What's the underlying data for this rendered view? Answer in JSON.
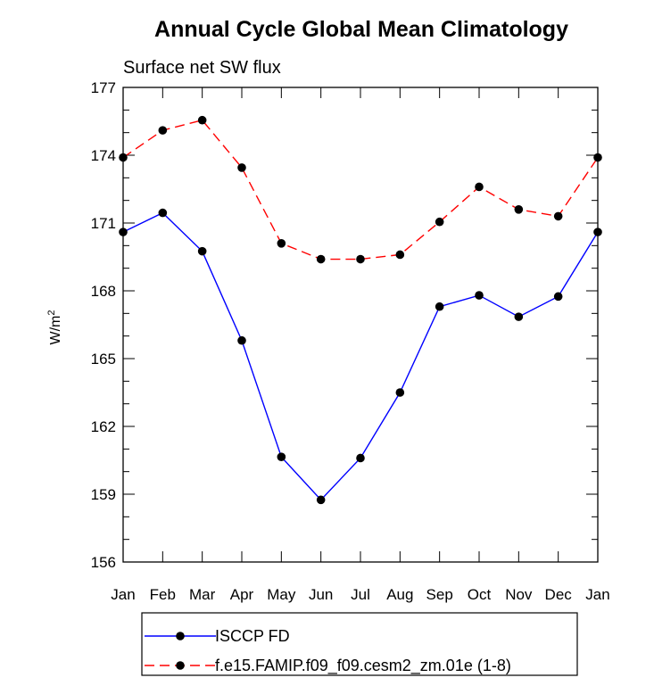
{
  "chart_data": {
    "type": "line",
    "title": "Annual Cycle Global Mean Climatology",
    "subtitle": "Surface net SW flux",
    "ylabel": "W/m",
    "ylabel_sup": "2",
    "xlabel": "",
    "categories": [
      "Jan",
      "Feb",
      "Mar",
      "Apr",
      "May",
      "Jun",
      "Jul",
      "Aug",
      "Sep",
      "Oct",
      "Nov",
      "Dec",
      "Jan"
    ],
    "ylim": [
      156,
      177
    ],
    "yticks": [
      156,
      159,
      162,
      165,
      168,
      171,
      174,
      177
    ],
    "series": [
      {
        "name": "ISCCP FD",
        "color": "#0000ff",
        "dash": "solid",
        "values": [
          170.6,
          171.45,
          169.75,
          165.8,
          160.65,
          158.75,
          160.6,
          163.5,
          167.3,
          167.8,
          166.85,
          167.75,
          170.6
        ]
      },
      {
        "name": "f.e15.FAMIP.f09_f09.cesm2_zm.01e (1-8)",
        "color": "#ff0000",
        "dash": "dashed",
        "values": [
          173.9,
          175.1,
          175.55,
          173.45,
          170.1,
          169.4,
          169.4,
          169.6,
          171.05,
          172.6,
          171.6,
          171.3,
          173.9
        ]
      }
    ],
    "grid": false,
    "legend_position": "bottom"
  }
}
